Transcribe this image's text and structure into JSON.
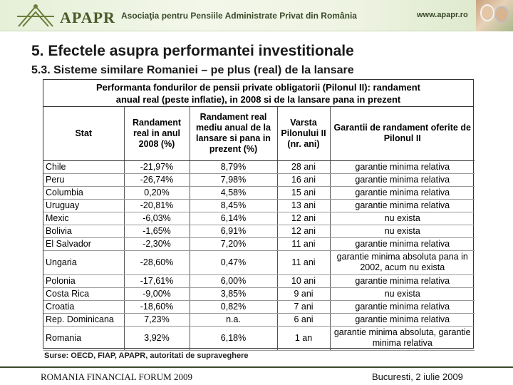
{
  "header": {
    "logo_text": "APAPR",
    "association": "Asociaţia pentru Pensiile Administrate Privat din România",
    "url": "www.apapr.ro"
  },
  "slide": {
    "title": "5. Efectele asupra performantei investitionale",
    "subtitle": "5.3. Sisteme similare Romaniei – pe plus (real) de la lansare"
  },
  "table": {
    "caption_line1": "Performanta fondurilor de pensii private obligatorii (Pilonul II): randament",
    "caption_line2": "anual real (peste inflatie), in 2008 si de la lansare pana in prezent",
    "headers": [
      "Stat",
      "Randament real in anul 2008 (%)",
      "Randament real mediu anual de la lansare si pana in prezent (%)",
      "Varsta Pilonului II (nr. ani)",
      "Garantii de randament oferite de Pilonul II"
    ],
    "rows": [
      {
        "stat": "Chile",
        "r2008": "-21,97%",
        "rmediu": "8,79%",
        "varsta": "28 ani",
        "garantii": "garantie minima relativa"
      },
      {
        "stat": "Peru",
        "r2008": "-26,74%",
        "rmediu": "7,98%",
        "varsta": "16 ani",
        "garantii": "garantie minima relativa"
      },
      {
        "stat": "Columbia",
        "r2008": "0,20%",
        "rmediu": "4,58%",
        "varsta": "15 ani",
        "garantii": "garantie minima relativa"
      },
      {
        "stat": "Uruguay",
        "r2008": "-20,81%",
        "rmediu": "8,45%",
        "varsta": "13 ani",
        "garantii": "garantie minima relativa"
      },
      {
        "stat": "Mexic",
        "r2008": "-6,03%",
        "rmediu": "6,14%",
        "varsta": "12 ani",
        "garantii": "nu exista"
      },
      {
        "stat": "Bolivia",
        "r2008": "-1,65%",
        "rmediu": "6,91%",
        "varsta": "12 ani",
        "garantii": "nu exista"
      },
      {
        "stat": "El Salvador",
        "r2008": "-2,30%",
        "rmediu": "7,20%",
        "varsta": "11 ani",
        "garantii": "garantie minima relativa"
      },
      {
        "stat": "Ungaria",
        "r2008": "-28,60%",
        "rmediu": "0,47%",
        "varsta": "11 ani",
        "garantii": "garantie minima absoluta pana in 2002, acum nu exista"
      },
      {
        "stat": "Polonia",
        "r2008": "-17,61%",
        "rmediu": "6,00%",
        "varsta": "10 ani",
        "garantii": "garantie minima relativa"
      },
      {
        "stat": "Costa Rica",
        "r2008": "-9,00%",
        "rmediu": "3,85%",
        "varsta": "9 ani",
        "garantii": "nu exista"
      },
      {
        "stat": "Croatia",
        "r2008": "-18,60%",
        "rmediu": "0,82%",
        "varsta": "7 ani",
        "garantii": "garantie minima relativa"
      },
      {
        "stat": "Rep. Dominicana",
        "r2008": "7,23%",
        "rmediu": "n.a.",
        "varsta": "6 ani",
        "garantii": "garantie minima relativa"
      },
      {
        "stat": "Romania",
        "r2008": "3,92%",
        "rmediu": "6,18%",
        "varsta": "1 an",
        "garantii": "garantie minima absoluta, garantie minima relativa"
      }
    ]
  },
  "source": "Surse: OECD, FIAP, APAPR, autoritati de supraveghere",
  "footer": {
    "left": "ROMANIA FINANCIAL FORUM 2009",
    "right": "Bucuresti, 2 iulie 2009"
  }
}
